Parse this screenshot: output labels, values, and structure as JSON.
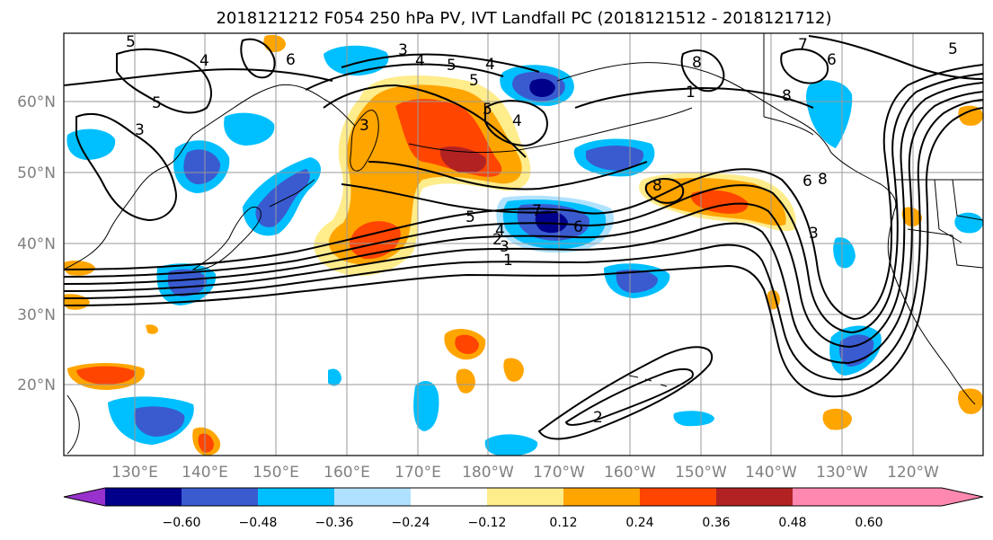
{
  "title": "2018121212 F054 250 hPa PV, IVT Landfall PC (2018121512 - 2018121712)",
  "map": {
    "lon_labels": [
      "130°E",
      "140°E",
      "150°E",
      "160°E",
      "170°E",
      "180°W",
      "170°W",
      "160°W",
      "150°W",
      "140°W",
      "130°W",
      "120°W"
    ],
    "lat_labels": [
      "60°N",
      "50°N",
      "40°N",
      "30°N",
      "20°N"
    ],
    "contour_labels": [
      "5",
      "4",
      "6",
      "3",
      "5",
      "3",
      "4",
      "5",
      "5",
      "4",
      "3",
      "5",
      "4",
      "8",
      "7",
      "1",
      "8",
      "6",
      "5",
      "8",
      "8",
      "6",
      "3",
      "5",
      "4",
      "3",
      "2",
      "1",
      "7",
      "6",
      "2"
    ]
  },
  "colorbar": {
    "ticks": [
      "−0.60",
      "−0.48",
      "−0.36",
      "−0.24",
      "−0.12",
      "0.12",
      "0.24",
      "0.36",
      "0.48",
      "0.60"
    ],
    "colors": [
      "#9932cc",
      "#00008b",
      "#3a5bd0",
      "#00bfff",
      "#b0e2ff",
      "#ffffff",
      "#ffec8b",
      "#ffa500",
      "#ff4500",
      "#b22222",
      "#ff88b0"
    ],
    "boundaries": [
      -0.6,
      -0.48,
      -0.36,
      -0.24,
      -0.12,
      0.12,
      0.24,
      0.36,
      0.48,
      0.6
    ]
  },
  "shading_palette": {
    "neg_light": "#b0e2ff",
    "neg_mid": "#00bfff",
    "neg_strong": "#3a5bd0",
    "neg_max": "#00008b",
    "pos_light": "#ffec8b",
    "pos_mid": "#ffa500",
    "pos_strong": "#ff4500",
    "pos_max": "#b22222"
  }
}
